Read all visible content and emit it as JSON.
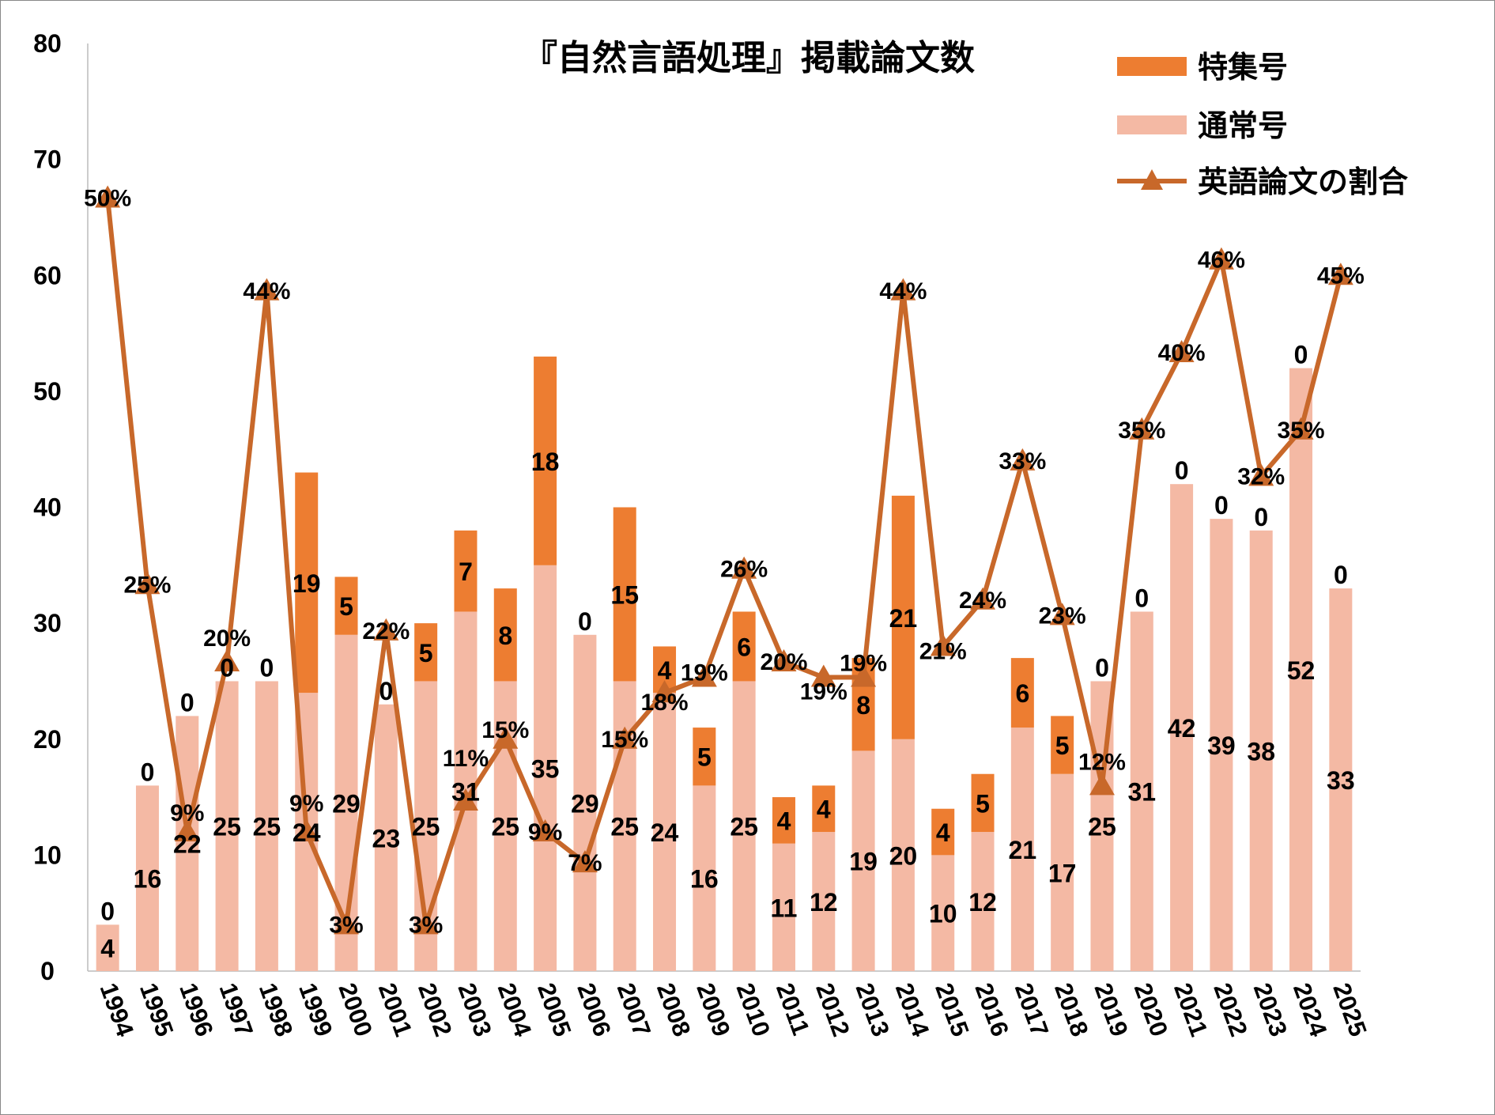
{
  "chart_data": {
    "type": "bar+line",
    "title": "『自然言語処理』掲載論文数",
    "categories": [
      "1994",
      "1995",
      "1996",
      "1997",
      "1998",
      "1999",
      "2000",
      "2001",
      "2002",
      "2003",
      "2004",
      "2005",
      "2006",
      "2007",
      "2008",
      "2009",
      "2010",
      "2011",
      "2012",
      "2013",
      "2014",
      "2015",
      "2016",
      "2017",
      "2018",
      "2019",
      "2020",
      "2021",
      "2022",
      "2023",
      "2024",
      "2025"
    ],
    "series": [
      {
        "name": "通常号",
        "kind": "stacked-bar",
        "color": "#F4B9A4",
        "values": [
          4,
          16,
          22,
          25,
          25,
          24,
          29,
          23,
          25,
          31,
          25,
          35,
          29,
          25,
          24,
          16,
          25,
          11,
          12,
          19,
          20,
          10,
          12,
          21,
          17,
          25,
          31,
          42,
          39,
          38,
          52,
          33
        ]
      },
      {
        "name": "特集号",
        "kind": "stacked-bar",
        "color": "#ED7D31",
        "values": [
          0,
          0,
          0,
          0,
          0,
          19,
          5,
          0,
          5,
          7,
          8,
          18,
          0,
          15,
          4,
          5,
          6,
          4,
          4,
          8,
          21,
          4,
          5,
          6,
          5,
          0,
          0,
          0,
          0,
          0,
          0,
          0
        ]
      },
      {
        "name": "英語論文の割合",
        "kind": "line",
        "marker": "triangle",
        "color": "#C8682A",
        "axis": "secondary",
        "unit": "%",
        "values": [
          50,
          25,
          9,
          20,
          44,
          9,
          3,
          22,
          3,
          11,
          15,
          9,
          7,
          15,
          18,
          19,
          26,
          20,
          19,
          19,
          44,
          21,
          24,
          33,
          23,
          12,
          35,
          40,
          46,
          32,
          35,
          45
        ]
      }
    ],
    "yaxis": {
      "ylim": [
        0,
        80
      ],
      "ticks": [
        "0",
        "10",
        "20",
        "30",
        "40",
        "50",
        "60",
        "70",
        "80"
      ]
    },
    "y2axis": {
      "ylim": [
        0,
        60
      ],
      "visible": false
    },
    "grid": false,
    "legend": "top-right"
  }
}
